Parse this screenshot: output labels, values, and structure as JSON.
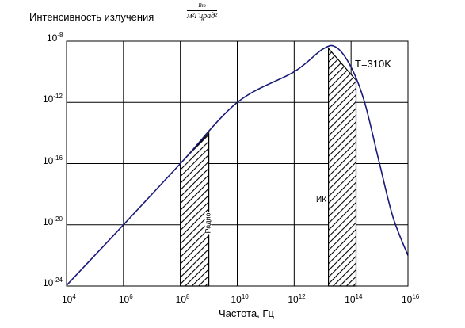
{
  "chart_data": {
    "type": "line",
    "title": "",
    "ylabel": "Интенсивность излучения",
    "y_unit": {
      "numerator": "Вт",
      "denominator": "м²Гцрад²"
    },
    "xlabel": "Частота, Гц",
    "x_scale": "log",
    "y_scale": "log",
    "xlim": [
      10000.0,
      1e+16
    ],
    "ylim": [
      1e-24,
      1e-08
    ],
    "x_ticks": [
      {
        "base": "10",
        "exp": "4",
        "value": 10000.0
      },
      {
        "base": "10",
        "exp": "6",
        "value": 1000000.0
      },
      {
        "base": "10",
        "exp": "8",
        "value": 100000000.0
      },
      {
        "base": "10",
        "exp": "10",
        "value": 10000000000.0
      },
      {
        "base": "10",
        "exp": "12",
        "value": 1000000000000.0
      },
      {
        "base": "10",
        "exp": "14",
        "value": 100000000000000.0
      },
      {
        "base": "10",
        "exp": "16",
        "value": 1e+16
      }
    ],
    "y_ticks": [
      {
        "base": "10",
        "exp": "-8",
        "value": 1e-08
      },
      {
        "base": "10",
        "exp": "-12",
        "value": 1e-12
      },
      {
        "base": "10",
        "exp": "-16",
        "value": 1e-16
      },
      {
        "base": "10",
        "exp": "-20",
        "value": 1e-20
      },
      {
        "base": "10",
        "exp": "-24",
        "value": 1e-24
      }
    ],
    "grid": true,
    "series": [
      {
        "color": "#1a1a7a",
        "x": [
          10000.0,
          1000000.0,
          100000000.0,
          10000000000.0,
          1000000000000.0,
          10000000000000.0,
          30000000000000.0,
          100000000000000.0,
          300000000000000.0,
          1000000000000000.0,
          3000000000000000.0,
          1e+16
        ],
        "y": [
          1.1e-24,
          1e-20,
          1e-16,
          1e-12,
          1e-10,
          3e-09,
          4e-09,
          2e-10,
          1e-12,
          1e-16,
          3e-20,
          1e-22
        ]
      }
    ],
    "annotations": [
      {
        "text": "T=310K"
      }
    ],
    "bands": [
      {
        "label": "Радио",
        "x_range": [
          100000000.0,
          1000000000.0
        ]
      },
      {
        "label": "ИК",
        "x_range": [
          16000000000000.0,
          150000000000000.0
        ]
      }
    ]
  }
}
